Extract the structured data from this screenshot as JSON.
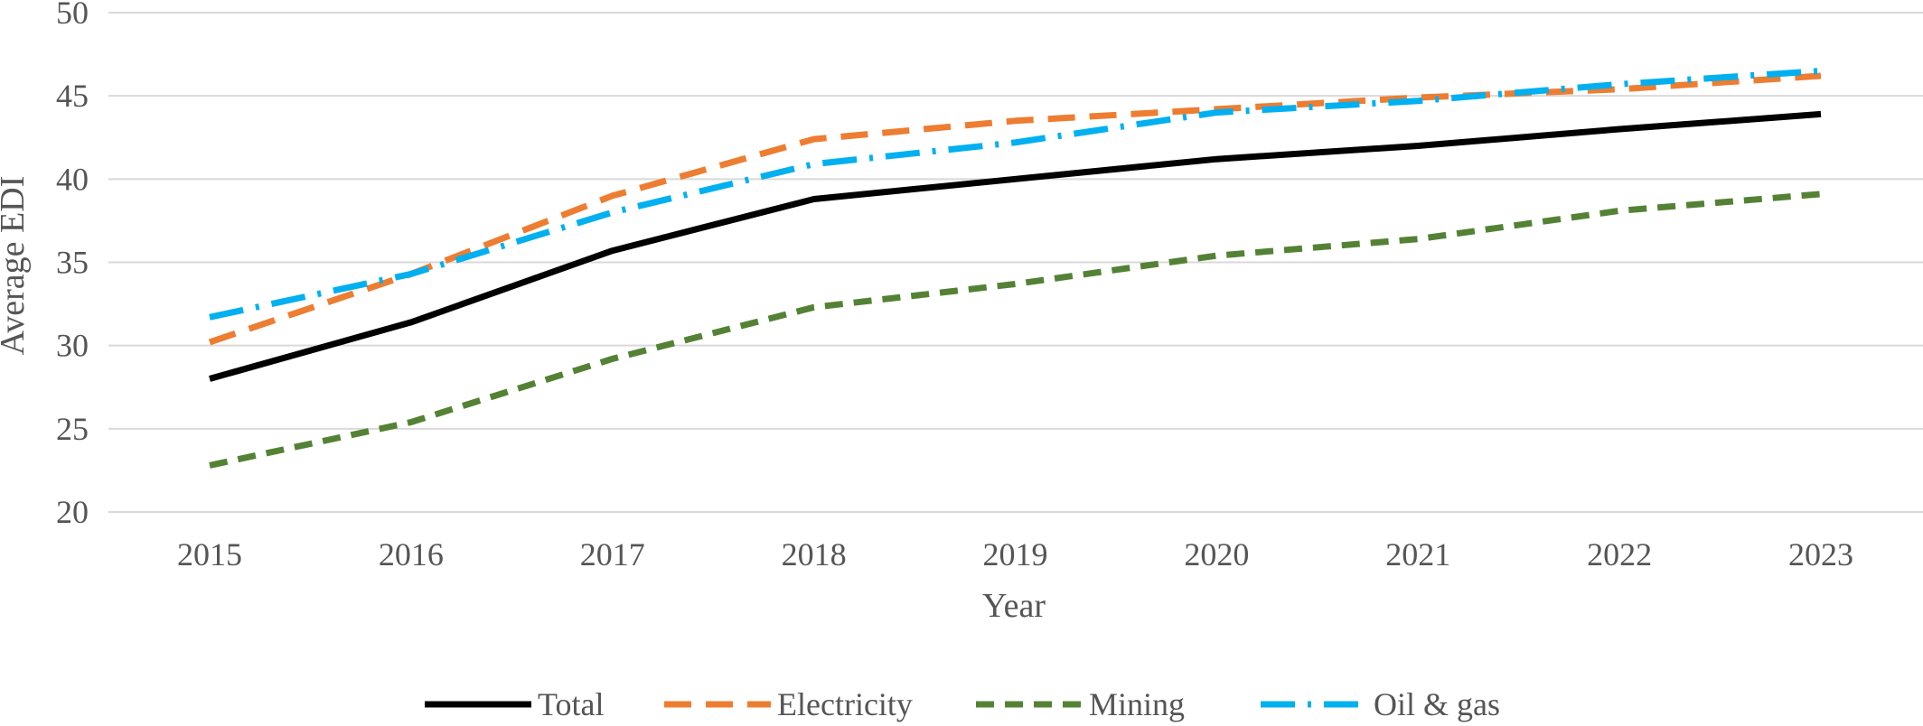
{
  "chart_data": {
    "type": "line",
    "title": "",
    "xlabel": "Year",
    "ylabel": "Average EDI",
    "ylim": [
      20,
      50
    ],
    "yticks": [
      20,
      25,
      30,
      35,
      40,
      45,
      50
    ],
    "grid": "horizontal",
    "legend_position": "bottom",
    "categories": [
      "2015",
      "2016",
      "2017",
      "2018",
      "2019",
      "2020",
      "2021",
      "2022",
      "2023"
    ],
    "series": [
      {
        "name": "Total",
        "color": "#000000",
        "style": "solid",
        "values": [
          28.0,
          31.4,
          35.7,
          38.8,
          40.0,
          41.2,
          42.0,
          43.0,
          43.9
        ]
      },
      {
        "name": "Electricity",
        "color": "#ED7D31",
        "style": "dash",
        "values": [
          30.2,
          34.3,
          39.0,
          42.4,
          43.5,
          44.2,
          44.9,
          45.4,
          46.2
        ]
      },
      {
        "name": "Mining",
        "color": "#548235",
        "style": "short-dash",
        "values": [
          22.8,
          25.4,
          29.2,
          32.3,
          33.7,
          35.4,
          36.4,
          38.1,
          39.1
        ]
      },
      {
        "name": "Oil & gas",
        "color": "#00B0F0",
        "style": "dash-dot",
        "values": [
          31.7,
          34.3,
          38.0,
          40.9,
          42.2,
          44.0,
          44.7,
          45.7,
          46.5
        ]
      }
    ]
  }
}
